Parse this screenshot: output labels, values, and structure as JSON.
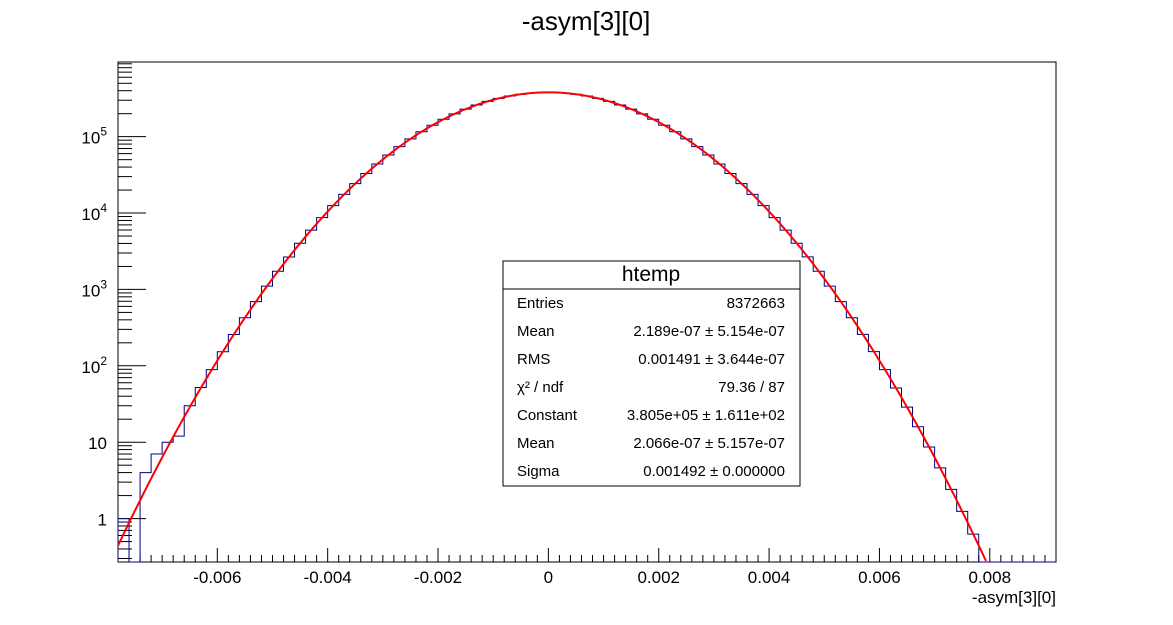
{
  "chart_data": {
    "type": "histogram",
    "title": "-asym[3][0]",
    "xlabel": "-asym[3][0]",
    "ylabel": "",
    "xlim": [
      -0.0078,
      0.0092
    ],
    "ylim": [
      0.27,
      950000
    ],
    "yscale": "log",
    "x_ticks": [
      -0.006,
      -0.004,
      -0.002,
      0,
      0.002,
      0.004,
      0.006,
      0.008
    ],
    "x_tick_labels": [
      "-0.006",
      "-0.004",
      "-0.002",
      "0",
      "0.002",
      "0.004",
      "0.006",
      "0.008"
    ],
    "y_ticks": [
      {
        "value": 1,
        "base": "1",
        "exp": ""
      },
      {
        "value": 10,
        "base": "10",
        "exp": ""
      },
      {
        "value": 100,
        "base": "10",
        "exp": "2"
      },
      {
        "value": 1000,
        "base": "10",
        "exp": "3"
      },
      {
        "value": 10000,
        "base": "10",
        "exp": "4"
      },
      {
        "value": 100000,
        "base": "10",
        "exp": "5"
      }
    ],
    "grid": false,
    "histogram": {
      "name": "htemp",
      "color": "#000080",
      "bin_width": 0.0002,
      "bin_low_edges": [
        -0.0078,
        -0.0076,
        -0.0074,
        -0.0072,
        -0.007,
        -0.0068,
        -0.0066,
        -0.0064
      ],
      "note_left_tail_counts": [
        1,
        0,
        4,
        7,
        10,
        12,
        30,
        52
      ]
    },
    "fit": {
      "type": "gaus",
      "color": "#ff0000",
      "constant": 380500,
      "mean": 2.066e-07,
      "sigma": 0.001492
    },
    "stats_box": {
      "title": "htemp",
      "rows": [
        {
          "label": "Entries",
          "value": "8372663"
        },
        {
          "label": "Mean",
          "value": "2.189e-07 ± 5.154e-07"
        },
        {
          "label": "RMS",
          "value": "0.001491 ± 3.644e-07"
        },
        {
          "label": "χ² / ndf",
          "value": "79.36 / 87"
        },
        {
          "label": "Constant",
          "value": "3.805e+05 ± 1.611e+02"
        },
        {
          "label": "Mean",
          "value": "2.066e-07 ± 5.157e-07"
        },
        {
          "label": "Sigma",
          "value": "0.001492 ± 0.000000"
        }
      ]
    }
  }
}
